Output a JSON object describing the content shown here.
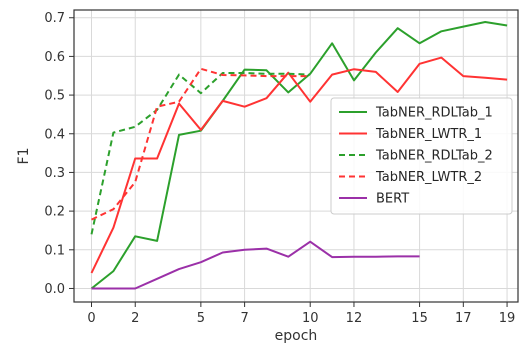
{
  "chart_data": {
    "type": "line",
    "xlabel": "epoch",
    "ylabel": "F1",
    "xlim": [
      -0.8,
      19.5
    ],
    "ylim": [
      -0.035,
      0.72
    ],
    "xticks": [
      0,
      2,
      5,
      7,
      10,
      12,
      15,
      17,
      19
    ],
    "yticks": [
      0.0,
      0.1,
      0.2,
      0.3,
      0.4,
      0.5,
      0.6,
      0.7
    ],
    "ytick_labels": [
      "0.0",
      "0.1",
      "0.2",
      "0.3",
      "0.4",
      "0.5",
      "0.6",
      "0.7"
    ],
    "grid": true,
    "legend_position": "center-right",
    "series": [
      {
        "name": "TabNER_RDLTab_1",
        "color": "#2ca02c",
        "dash": "solid",
        "x": [
          0,
          1,
          2,
          3,
          4,
          5,
          6,
          7,
          8,
          9,
          10,
          11,
          12,
          13,
          14,
          15,
          16,
          17,
          18,
          19
        ],
        "y": [
          0.0,
          0.045,
          0.135,
          0.123,
          0.397,
          0.408,
          0.485,
          0.566,
          0.564,
          0.507,
          0.555,
          0.634,
          0.538,
          0.61,
          0.673,
          0.634,
          0.665,
          0.677,
          0.689,
          0.68
        ]
      },
      {
        "name": "TabNER_LWTR_1",
        "color": "#ff3333",
        "dash": "solid",
        "x": [
          0,
          1,
          2,
          3,
          4,
          5,
          6,
          7,
          8,
          9,
          10,
          11,
          12,
          13,
          14,
          15,
          16,
          17,
          18,
          19
        ],
        "y": [
          0.04,
          0.157,
          0.336,
          0.336,
          0.478,
          0.41,
          0.485,
          0.47,
          0.492,
          0.558,
          0.483,
          0.553,
          0.567,
          0.56,
          0.508,
          0.581,
          0.597,
          0.549,
          0.545,
          0.54
        ]
      },
      {
        "name": "TabNER_RDLTab_2",
        "color": "#2ca02c",
        "dash": "dashed",
        "x": [
          0,
          1,
          2,
          3,
          4,
          5,
          6,
          7,
          8,
          9,
          10
        ],
        "y": [
          0.14,
          0.403,
          0.418,
          0.462,
          0.553,
          0.505,
          0.557,
          0.557,
          0.555,
          0.555,
          0.553
        ]
      },
      {
        "name": "TabNER_LWTR_2",
        "color": "#ff3333",
        "dash": "dashed",
        "x": [
          0,
          1,
          2,
          3,
          4,
          5,
          6,
          7,
          8,
          9,
          10
        ],
        "y": [
          0.178,
          0.205,
          0.275,
          0.47,
          0.483,
          0.568,
          0.552,
          0.551,
          0.549,
          0.549,
          0.549
        ]
      },
      {
        "name": "BERT",
        "color": "#9b30a8",
        "dash": "solid",
        "x": [
          0,
          1,
          2,
          3,
          4,
          5,
          6,
          7,
          8,
          9,
          10,
          11,
          12,
          13,
          14,
          15
        ],
        "y": [
          0.0,
          0.0,
          0.0,
          0.025,
          0.05,
          0.068,
          0.093,
          0.1,
          0.103,
          0.082,
          0.121,
          0.081,
          0.082,
          0.082,
          0.083,
          0.083
        ]
      }
    ]
  }
}
